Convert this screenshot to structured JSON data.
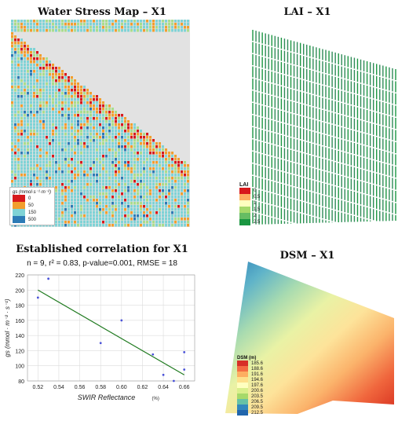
{
  "panels": {
    "stress": {
      "title": "Water Stress Map – X1",
      "legend_label": "gs (mmol·s⁻¹·m⁻²)",
      "legend": [
        {
          "label": "0",
          "color": "#d7191c"
        },
        {
          "label": "50",
          "color": "#f29e2e"
        },
        {
          "label": "150",
          "color": "#7fd3d6"
        },
        {
          "label": "500",
          "color": "#2c7bb6"
        }
      ]
    },
    "lai": {
      "title": "LAI – X1",
      "legend_title": "LAI",
      "legend": [
        {
          "label": "0",
          "color": "#d7191c"
        },
        {
          "label": "0.5",
          "color": "#fdae61"
        },
        {
          "label": "1",
          "color": "#ffffbf"
        },
        {
          "label": "1.5",
          "color": "#a6d96a"
        },
        {
          "label": "2",
          "color": "#66bd63"
        },
        {
          "label": "2.5",
          "color": "#1a9641"
        }
      ]
    },
    "dsm": {
      "title": "DSM – X1",
      "legend_title": "DSM (m)",
      "legend": [
        {
          "label": "185.6",
          "color": "#d73027"
        },
        {
          "label": "188.6",
          "color": "#f46d43"
        },
        {
          "label": "191.6",
          "color": "#fdae61"
        },
        {
          "label": "194.6",
          "color": "#fee08b"
        },
        {
          "label": "197.6",
          "color": "#ffffbf"
        },
        {
          "label": "200.6",
          "color": "#d9ef8b"
        },
        {
          "label": "203.5",
          "color": "#a6d96a"
        },
        {
          "label": "206.5",
          "color": "#66c2a5"
        },
        {
          "label": "209.5",
          "color": "#3288bd"
        },
        {
          "label": "212.5",
          "color": "#2166ac"
        }
      ]
    }
  },
  "chart_data": {
    "type": "scatter",
    "title": "Established correlation for X1",
    "subtitle": "n = 9, r² = 0.83, p-value=0.001, RMSE = 18",
    "xlabel": "SWIR Reflectance",
    "xlabel_unit": "(%)",
    "ylabel": "gs (mmol · m⁻² · s⁻¹)",
    "xlim": [
      0.51,
      0.67
    ],
    "ylim": [
      80,
      220
    ],
    "xticks": [
      "0.52",
      "0.54",
      "0.56",
      "0.58",
      "0.60",
      "0.62",
      "0.64",
      "0.66"
    ],
    "yticks": [
      "80",
      "100",
      "120",
      "140",
      "160",
      "180",
      "200",
      "220"
    ],
    "grid": true,
    "points": [
      {
        "x": 0.52,
        "y": 190
      },
      {
        "x": 0.53,
        "y": 215
      },
      {
        "x": 0.58,
        "y": 130
      },
      {
        "x": 0.6,
        "y": 160
      },
      {
        "x": 0.63,
        "y": 115
      },
      {
        "x": 0.64,
        "y": 88
      },
      {
        "x": 0.65,
        "y": 80
      },
      {
        "x": 0.66,
        "y": 118
      },
      {
        "x": 0.66,
        "y": 95
      }
    ],
    "fit": [
      {
        "x": 0.52,
        "y": 200
      },
      {
        "x": 0.66,
        "y": 88
      }
    ],
    "colors": {
      "points": "#4a52d8",
      "fit": "#1f7a1f"
    }
  }
}
